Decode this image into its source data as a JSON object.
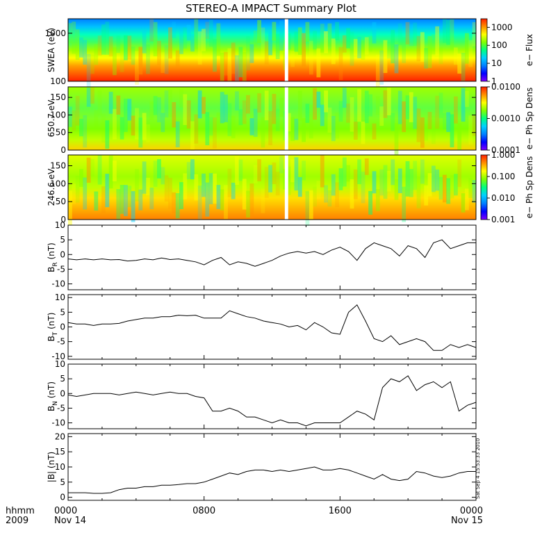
{
  "title": "STEREO-A IMPACT Summary Plot",
  "timestamp": "Sat Sep  4 15:53:33 2010",
  "x_axis": {
    "label_top": "hhmm",
    "label_bottom": "2009",
    "ticks": [
      {
        "value_hours": 0,
        "hhmm": "0000",
        "date": "Nov 14"
      },
      {
        "value_hours": 8,
        "hhmm": "0800",
        "date": ""
      },
      {
        "value_hours": 16,
        "hhmm": "1600",
        "date": ""
      },
      {
        "value_hours": 24,
        "hhmm": "0000",
        "date": "Nov 15"
      }
    ],
    "range_hours": [
      0,
      24
    ]
  },
  "colors": {
    "line": "#000000",
    "gap": "#ffffff",
    "colormap": [
      "#8000ff",
      "#0000ff",
      "#0080ff",
      "#00d0ff",
      "#00ff80",
      "#80ff00",
      "#ffff00",
      "#ff9000",
      "#ff2000"
    ]
  },
  "chart_data": [
    {
      "type": "heatmap",
      "ylabel": "SWEA (eV)",
      "y_scale": "log",
      "ylim": [
        100,
        2000
      ],
      "yticks": [
        "1000",
        "100"
      ],
      "colorbar": {
        "label": "e− Flux",
        "scale": "log",
        "ticks": [
          "1000",
          "100",
          "10",
          "1"
        ],
        "range": [
          1,
          3000
        ]
      },
      "data_gap_hours": [
        12.75,
        12.95
      ],
      "description_values": {
        "low_energy_level": 0.9,
        "mid_energy_level": 0.6,
        "high_energy_level": 0.3
      }
    },
    {
      "type": "heatmap",
      "ylabel": "650.7 eV",
      "ylim": [
        0,
        180
      ],
      "yticks": [
        "150",
        "100",
        "50",
        "0"
      ],
      "colorbar": {
        "label": "e− Ph Sp Dens",
        "scale": "log",
        "ticks": [
          "0.0100",
          "0.0010",
          "0.0001"
        ],
        "range": [
          0.0001,
          0.01
        ]
      },
      "data_gap_hours": [
        12.75,
        12.95
      ]
    },
    {
      "type": "heatmap",
      "ylabel": "246.6 eV",
      "ylim": [
        0,
        180
      ],
      "yticks": [
        "150",
        "100",
        "50",
        "0"
      ],
      "colorbar": {
        "label": "e− Ph Sp Dens",
        "scale": "log",
        "ticks": [
          "1.000",
          "0.100",
          "0.010",
          "0.001"
        ],
        "range": [
          0.001,
          1
        ]
      },
      "data_gap_hours": [
        12.75,
        12.95
      ]
    },
    {
      "type": "line",
      "ylabel": "B",
      "ysub": "R",
      "yunit": " (nT)",
      "ylim": [
        -12,
        10
      ],
      "yticks": [
        10,
        5,
        0,
        -5,
        -10
      ],
      "x": [
        0,
        0.5,
        1,
        1.5,
        2,
        2.5,
        3,
        3.5,
        4,
        4.5,
        5,
        5.5,
        6,
        6.5,
        7,
        7.5,
        8,
        8.5,
        9,
        9.5,
        10,
        10.5,
        11,
        11.5,
        12,
        12.5,
        13,
        13.5,
        14,
        14.5,
        15,
        15.5,
        16,
        16.5,
        17,
        17.5,
        18,
        18.5,
        19,
        19.5,
        20,
        20.5,
        21,
        21.5,
        22,
        22.5,
        23,
        23.5,
        24
      ],
      "y": [
        -1.5,
        -1.8,
        -1.5,
        -1.8,
        -1.5,
        -1.8,
        -1.7,
        -2.2,
        -2,
        -1.5,
        -1.8,
        -1.2,
        -1.7,
        -1.5,
        -2,
        -2.5,
        -3.5,
        -2,
        -1,
        -3.5,
        -2.5,
        -3,
        -4,
        -3,
        -2,
        -0.5,
        0.5,
        1,
        0.5,
        1,
        0,
        1.5,
        2.5,
        1,
        -2,
        2,
        4,
        3,
        2,
        -0.5,
        3,
        2,
        -1,
        4,
        5,
        2,
        3,
        4,
        4
      ]
    },
    {
      "type": "line",
      "ylabel": "B",
      "ysub": "T",
      "yunit": " (nT)",
      "ylim": [
        -11,
        11
      ],
      "yticks": [
        10,
        5,
        0,
        -5,
        -10
      ],
      "x": [
        0,
        0.5,
        1,
        1.5,
        2,
        2.5,
        3,
        3.5,
        4,
        4.5,
        5,
        5.5,
        6,
        6.5,
        7,
        7.5,
        8,
        8.5,
        9,
        9.5,
        10,
        10.5,
        11,
        11.5,
        12,
        12.5,
        13,
        13.5,
        14,
        14.5,
        15,
        15.5,
        16,
        16.5,
        17,
        17.5,
        18,
        18.5,
        19,
        19.5,
        20,
        20.5,
        21,
        21.5,
        22,
        22.5,
        23,
        23.5,
        24
      ],
      "y": [
        1.5,
        1,
        1,
        0.5,
        1,
        1,
        1.2,
        2,
        2.5,
        3,
        3,
        3.5,
        3.5,
        4,
        3.8,
        4,
        3,
        3,
        3,
        5.5,
        4.5,
        3.5,
        3,
        2,
        1.5,
        1,
        0,
        0.5,
        -1,
        1.5,
        0,
        -2,
        -2.5,
        5,
        7.5,
        2,
        -4,
        -5,
        -3,
        -6,
        -5,
        -4,
        -5,
        -8,
        -8,
        -6,
        -7,
        -6,
        -7
      ]
    },
    {
      "type": "line",
      "ylabel": "B",
      "ysub": "N",
      "yunit": " (nT)",
      "ylim": [
        -12,
        10
      ],
      "yticks": [
        10,
        5,
        0,
        -5,
        -10
      ],
      "x": [
        0,
        0.5,
        1,
        1.5,
        2,
        2.5,
        3,
        3.5,
        4,
        4.5,
        5,
        5.5,
        6,
        6.5,
        7,
        7.5,
        8,
        8.5,
        9,
        9.5,
        10,
        10.5,
        11,
        11.5,
        12,
        12.5,
        13,
        13.5,
        14,
        14.5,
        15,
        15.5,
        16,
        16.5,
        17,
        17.5,
        18,
        18.5,
        19,
        19.5,
        20,
        20.5,
        21,
        21.5,
        22,
        22.5,
        23,
        23.5,
        24
      ],
      "y": [
        -0.5,
        -1,
        -0.5,
        0,
        0,
        0,
        -0.5,
        0,
        0.5,
        0,
        -0.5,
        0,
        0.5,
        0,
        0,
        -1,
        -1.5,
        -6,
        -6,
        -5,
        -6,
        -8,
        -8,
        -9,
        -10,
        -9,
        -10,
        -10,
        -11,
        -10,
        -10,
        -10,
        -10,
        -8,
        -6,
        -7,
        -9,
        2,
        5,
        4,
        6,
        1,
        3,
        4,
        2,
        4,
        -6,
        -4,
        -3
      ]
    },
    {
      "type": "line",
      "ylabel": "|B| (nT)",
      "ylim": [
        -1,
        21
      ],
      "yticks": [
        20,
        15,
        10,
        5,
        0
      ],
      "x": [
        0,
        0.5,
        1,
        1.5,
        2,
        2.5,
        3,
        3.5,
        4,
        4.5,
        5,
        5.5,
        6,
        6.5,
        7,
        7.5,
        8,
        8.5,
        9,
        9.5,
        10,
        10.5,
        11,
        11.5,
        12,
        12.5,
        13,
        13.5,
        14,
        14.5,
        15,
        15.5,
        16,
        16.5,
        17,
        17.5,
        18,
        18.5,
        19,
        19.5,
        20,
        20.5,
        21,
        21.5,
        22,
        22.5,
        23,
        23.5,
        24
      ],
      "y": [
        1.5,
        1.5,
        1.5,
        1.3,
        1.3,
        1.5,
        2.5,
        3,
        3,
        3.5,
        3.5,
        4,
        4,
        4.2,
        4.5,
        4.5,
        5,
        6,
        7,
        8,
        7.5,
        8.5,
        9,
        9,
        8.5,
        9,
        8.5,
        9,
        9.5,
        10,
        9,
        9,
        9.5,
        9,
        8,
        7,
        6,
        7.5,
        6,
        5.5,
        6,
        8.5,
        8,
        7,
        6.5,
        7,
        8,
        8.5,
        8.5
      ]
    }
  ]
}
